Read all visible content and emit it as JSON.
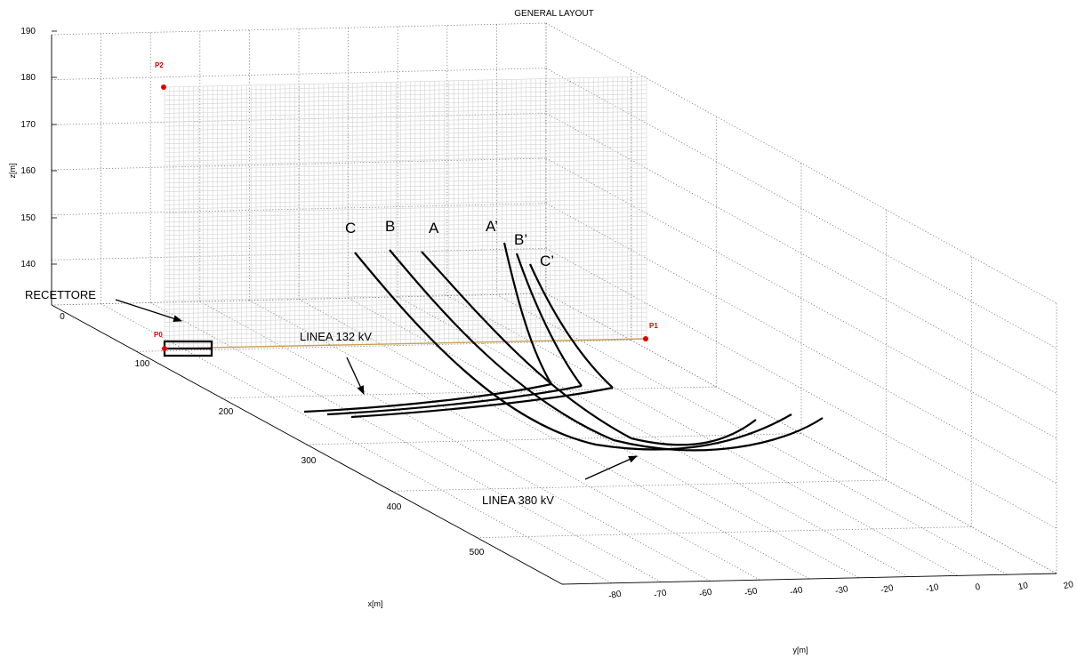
{
  "chart_data": {
    "type": "line",
    "title": "GENERAL LAYOUT",
    "xlabel": "x[m]",
    "ylabel": "y[m]",
    "zlabel": "z[m]",
    "x_ticks": [
      "0",
      "100",
      "200",
      "300",
      "400",
      "500"
    ],
    "y_ticks": [
      "-80",
      "-70",
      "-60",
      "-50",
      "-40",
      "-30",
      "-20",
      "-10",
      "0",
      "10",
      "20"
    ],
    "z_ticks": [
      "140",
      "150",
      "160",
      "170",
      "180",
      "190"
    ],
    "grid": true,
    "points": [
      {
        "name": "P2",
        "label": "P2"
      },
      {
        "name": "P1",
        "label": "P1"
      },
      {
        "name": "P0",
        "label": "P0"
      }
    ],
    "annotations": {
      "receptor": "RECETTORE",
      "line_132": "LINEA 132 kV",
      "line_380": "LINEA 380 kV"
    },
    "phase_labels": [
      "C",
      "B",
      "A",
      "A’",
      "B’",
      "C’"
    ],
    "series": [
      {
        "name": "C"
      },
      {
        "name": "B"
      },
      {
        "name": "A"
      },
      {
        "name": "A’"
      },
      {
        "name": "B’"
      },
      {
        "name": "C’"
      }
    ],
    "colors": {
      "points": "#e00000",
      "ground_line": "#c8a050",
      "mesh": "#cfcfcf",
      "grid": "#777777"
    }
  }
}
